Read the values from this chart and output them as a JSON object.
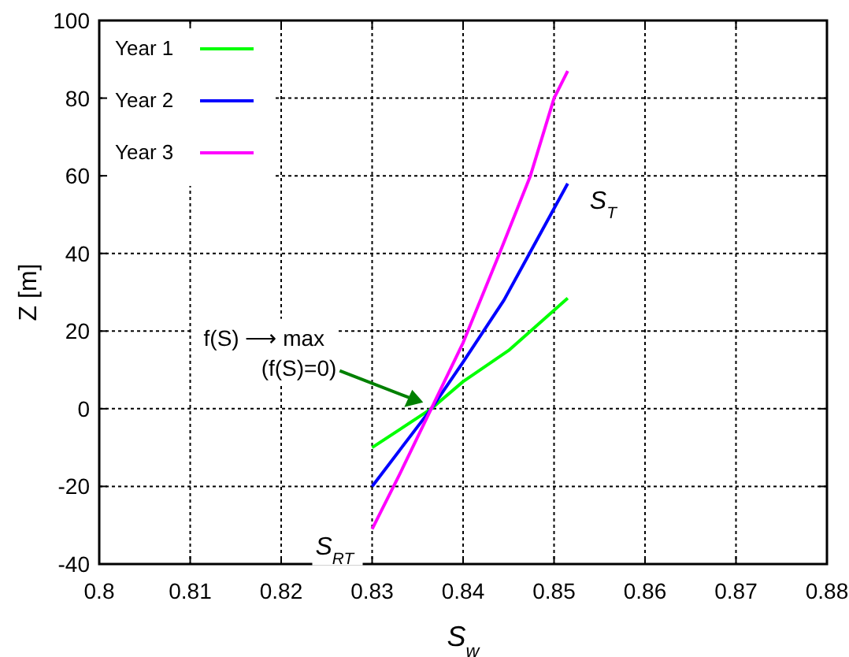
{
  "chart_data": {
    "type": "line",
    "xlabel": "S$_{w}$",
    "ylabel": "Z [m]",
    "xlim": [
      0.8,
      0.88
    ],
    "xticks": [
      {
        "value": 0.8,
        "label": "0.8"
      },
      0.81,
      0.82,
      0.83,
      0.84,
      0.85,
      0.86,
      0.87,
      0.88
    ],
    "ylim": [
      -40,
      100
    ],
    "yticks": [
      -40,
      -20,
      0,
      20,
      40,
      60,
      80,
      100
    ],
    "grid": true,
    "legend": "top left",
    "line_style": "solid",
    "marker": "none",
    "series": [
      {
        "name": "Year 1",
        "color": "#00ff00",
        "x": [
          0.83,
          0.8365,
          0.84,
          0.845,
          0.8515
        ],
        "values": [
          -10,
          0,
          7,
          15,
          28.5
        ]
      },
      {
        "name": "Year 2",
        "color": "#0000ff",
        "x": [
          0.83,
          0.8365,
          0.84,
          0.8445,
          0.8473,
          0.8515
        ],
        "values": [
          -20,
          0,
          12,
          28,
          40,
          58
        ]
      },
      {
        "name": "Year 3",
        "color": "#ff00ff",
        "x": [
          0.83,
          0.833,
          0.8365,
          0.84,
          0.844,
          0.8474,
          0.85,
          0.8515
        ],
        "values": [
          -31,
          -17,
          0,
          17,
          40,
          60,
          80,
          87
        ]
      }
    ],
    "annotations": [
      "f(S) ⟶ max",
      "(f(S)=0)",
      {
        "text": "S$_{T}$",
        "x": 0.8515,
        "y": 58
      },
      {
        "text": "S$_{RT}$",
        "x": 0.83,
        "y": -31
      }
    ]
  }
}
